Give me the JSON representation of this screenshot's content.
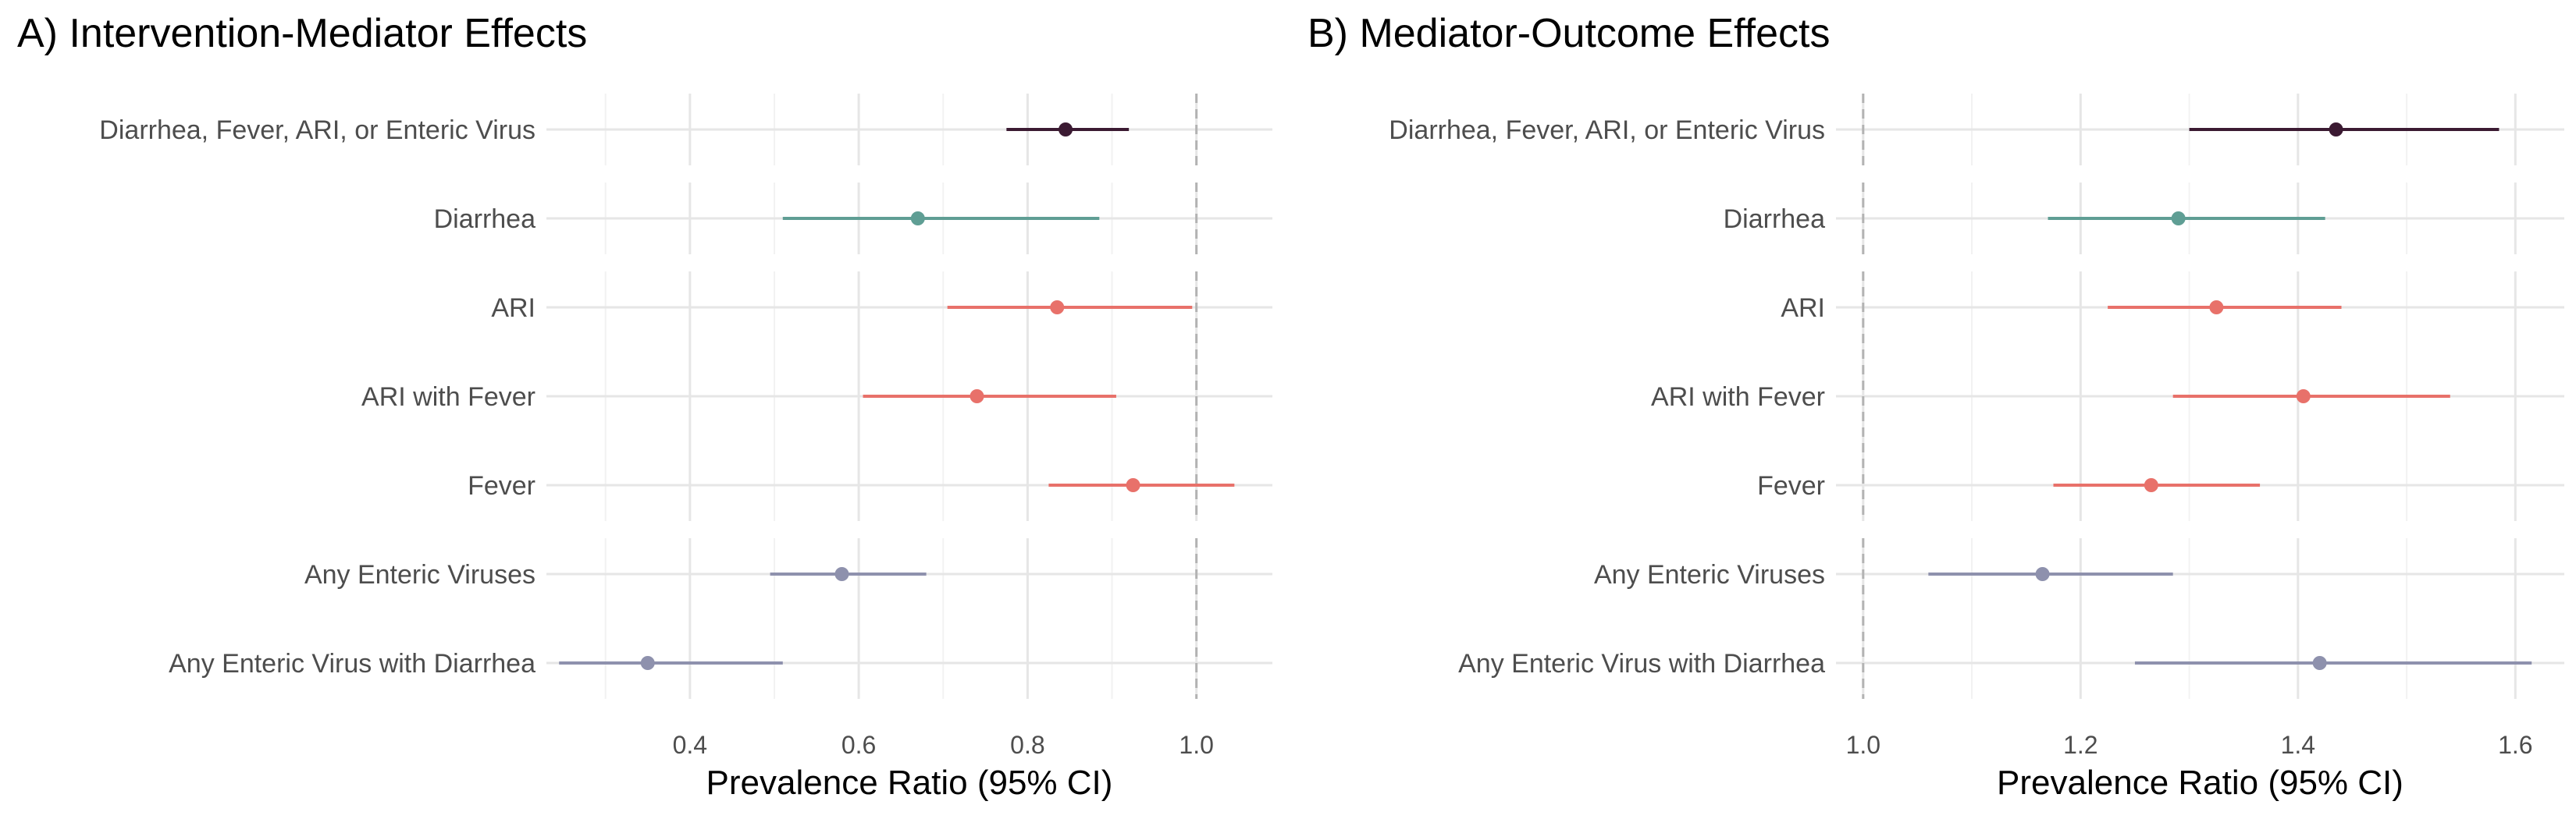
{
  "colors": {
    "composite": "#3b1a32",
    "diarrhea": "#5f9e94",
    "respiratory": "#e8716a",
    "enteric": "#8e91ad",
    "grid_major": "#e6e6e6",
    "grid_minor": "#f2f2f2",
    "reference_line": "#b3b3b3",
    "text": "#4d4d4d"
  },
  "chart_data": [
    {
      "type": "scatter",
      "subtype": "forest-plot",
      "title": "A) Intervention-Mediator Effects",
      "xlabel": "Prevalence Ratio (95% CI)",
      "xlim": [
        0.23,
        1.09
      ],
      "xticks": [
        "0.4",
        "0.6",
        "0.8",
        "1.0"
      ],
      "xtick_values": [
        0.4,
        0.6,
        0.8,
        1.0
      ],
      "minor_gridlines": [
        0.3,
        0.5,
        0.7,
        0.9
      ],
      "reference_line": 1.0,
      "grid": true,
      "legend": "none",
      "groups": [
        {
          "color_key": "composite",
          "rows": [
            0
          ]
        },
        {
          "color_key": "diarrhea",
          "rows": [
            1
          ]
        },
        {
          "color_key": "respiratory",
          "rows": [
            2,
            3,
            4
          ]
        },
        {
          "color_key": "enteric",
          "rows": [
            5,
            6
          ]
        }
      ],
      "rows": [
        {
          "label": "Diarrhea, Fever, ARI, or Enteric Virus",
          "estimate": 0.845,
          "lower": 0.775,
          "upper": 0.92,
          "color_key": "composite"
        },
        {
          "label": "Diarrhea",
          "estimate": 0.67,
          "lower": 0.51,
          "upper": 0.885,
          "color_key": "diarrhea"
        },
        {
          "label": "ARI",
          "estimate": 0.835,
          "lower": 0.705,
          "upper": 0.995,
          "color_key": "respiratory"
        },
        {
          "label": "ARI with Fever",
          "estimate": 0.74,
          "lower": 0.605,
          "upper": 0.905,
          "color_key": "respiratory"
        },
        {
          "label": "Fever",
          "estimate": 0.925,
          "lower": 0.825,
          "upper": 1.045,
          "color_key": "respiratory"
        },
        {
          "label": "Any Enteric Viruses",
          "estimate": 0.58,
          "lower": 0.495,
          "upper": 0.68,
          "color_key": "enteric"
        },
        {
          "label": "Any Enteric Virus with Diarrhea",
          "estimate": 0.35,
          "lower": 0.245,
          "upper": 0.51,
          "color_key": "enteric"
        }
      ]
    },
    {
      "type": "scatter",
      "subtype": "forest-plot",
      "title": "B) Mediator-Outcome Effects",
      "xlabel": "Prevalence Ratio (95% CI)",
      "xlim": [
        0.975,
        1.645
      ],
      "xticks": [
        "1.0",
        "1.2",
        "1.4",
        "1.6"
      ],
      "xtick_values": [
        1.0,
        1.2,
        1.4,
        1.6
      ],
      "minor_gridlines": [
        1.1,
        1.3,
        1.5
      ],
      "reference_line": 1.0,
      "grid": true,
      "legend": "none",
      "groups": [
        {
          "color_key": "composite",
          "rows": [
            0
          ]
        },
        {
          "color_key": "diarrhea",
          "rows": [
            1
          ]
        },
        {
          "color_key": "respiratory",
          "rows": [
            2,
            3,
            4
          ]
        },
        {
          "color_key": "enteric",
          "rows": [
            5,
            6
          ]
        }
      ],
      "rows": [
        {
          "label": "Diarrhea, Fever, ARI, or Enteric Virus",
          "estimate": 1.435,
          "lower": 1.3,
          "upper": 1.585,
          "color_key": "composite"
        },
        {
          "label": "Diarrhea",
          "estimate": 1.29,
          "lower": 1.17,
          "upper": 1.425,
          "color_key": "diarrhea"
        },
        {
          "label": "ARI",
          "estimate": 1.325,
          "lower": 1.225,
          "upper": 1.44,
          "color_key": "respiratory"
        },
        {
          "label": "ARI with Fever",
          "estimate": 1.405,
          "lower": 1.285,
          "upper": 1.54,
          "color_key": "respiratory"
        },
        {
          "label": "Fever",
          "estimate": 1.265,
          "lower": 1.175,
          "upper": 1.365,
          "color_key": "respiratory"
        },
        {
          "label": "Any Enteric Viruses",
          "estimate": 1.165,
          "lower": 1.06,
          "upper": 1.285,
          "color_key": "enteric"
        },
        {
          "label": "Any Enteric Virus with Diarrhea",
          "estimate": 1.42,
          "lower": 1.25,
          "upper": 1.615,
          "color_key": "enteric"
        }
      ]
    }
  ]
}
